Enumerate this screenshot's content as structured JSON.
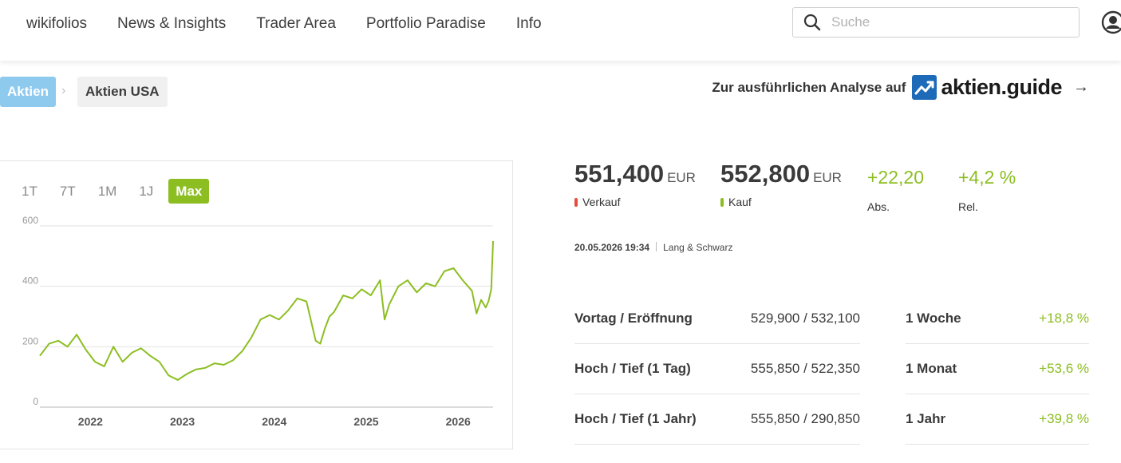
{
  "nav": {
    "items": [
      "wikifolios",
      "News & Insights",
      "Trader Area",
      "Portfolio Paradise",
      "Info"
    ],
    "search_placeholder": "Suche"
  },
  "breadcrumb": {
    "first": "Aktien",
    "second": "Aktien USA"
  },
  "guide": {
    "text": "Zur ausführlichen Analyse auf",
    "brand": "aktien.guide",
    "arrow": "→"
  },
  "chart": {
    "ranges": [
      "1T",
      "7T",
      "1M",
      "1J",
      "Max"
    ],
    "active_range": "Max"
  },
  "chart_data": {
    "type": "line",
    "x_ticks": [
      "2022",
      "2023",
      "2024",
      "2025",
      "2026"
    ],
    "y_ticks": [
      "0",
      "200",
      "400",
      "600"
    ],
    "ylim": [
      0,
      600
    ],
    "grid": true,
    "line_color": "#8cbe22",
    "series": [
      {
        "x": [
          "2021.45",
          "2021.55",
          "2021.65",
          "2021.75",
          "2021.85",
          "2021.95",
          "2022.05",
          "2022.15",
          "2022.25",
          "2022.35",
          "2022.45",
          "2022.55",
          "2022.65",
          "2022.75",
          "2022.85",
          "2022.95",
          "2023.05",
          "2023.15",
          "2023.25",
          "2023.35",
          "2023.45",
          "2023.55",
          "2023.65",
          "2023.75",
          "2023.85",
          "2023.95",
          "2024.05",
          "2024.15",
          "2024.25",
          "2024.35",
          "2024.45",
          "2024.5",
          "2024.55",
          "2024.6",
          "2024.65",
          "2024.75",
          "2024.85",
          "2024.95",
          "2025.05",
          "2025.15",
          "2025.2",
          "2025.25",
          "2025.35",
          "2025.45",
          "2025.55",
          "2025.65",
          "2025.75",
          "2025.85",
          "2025.95",
          "2026.05",
          "2026.15",
          "2026.2",
          "2026.25",
          "2026.3",
          "2026.33",
          "2026.36",
          "2026.38"
        ],
        "values": [
          170,
          210,
          220,
          200,
          240,
          190,
          150,
          135,
          200,
          150,
          180,
          195,
          170,
          150,
          105,
          90,
          110,
          125,
          130,
          145,
          140,
          155,
          185,
          230,
          290,
          305,
          290,
          320,
          360,
          350,
          220,
          210,
          260,
          300,
          315,
          370,
          360,
          390,
          370,
          420,
          290,
          340,
          400,
          420,
          380,
          410,
          400,
          450,
          460,
          420,
          385,
          310,
          355,
          330,
          350,
          390,
          550
        ]
      }
    ]
  },
  "quotes": {
    "sell": {
      "value": "551,400",
      "unit": "EUR",
      "label": "Verkauf",
      "color": "#e84c3d"
    },
    "buy": {
      "value": "552,800",
      "unit": "EUR",
      "label": "Kauf",
      "color": "#8cbe22"
    },
    "abs": {
      "value": "+22,20",
      "label": "Abs."
    },
    "rel": {
      "value": "+4,2 %",
      "label": "Rel."
    },
    "timestamp": "20.05.2026 19:34",
    "venue": "Lang & Schwarz"
  },
  "stats_left": [
    {
      "label": "Vortag / Eröffnung",
      "value": "529,900 / 532,100"
    },
    {
      "label": "Hoch / Tief (1 Tag)",
      "value": "555,850 / 522,350"
    },
    {
      "label": "Hoch / Tief (1 Jahr)",
      "value": "555,850 / 290,850"
    }
  ],
  "stats_right": [
    {
      "label": "1 Woche",
      "value": "+18,8 %"
    },
    {
      "label": "1 Monat",
      "value": "+53,6 %"
    },
    {
      "label": "1 Jahr",
      "value": "+39,8 %"
    }
  ]
}
